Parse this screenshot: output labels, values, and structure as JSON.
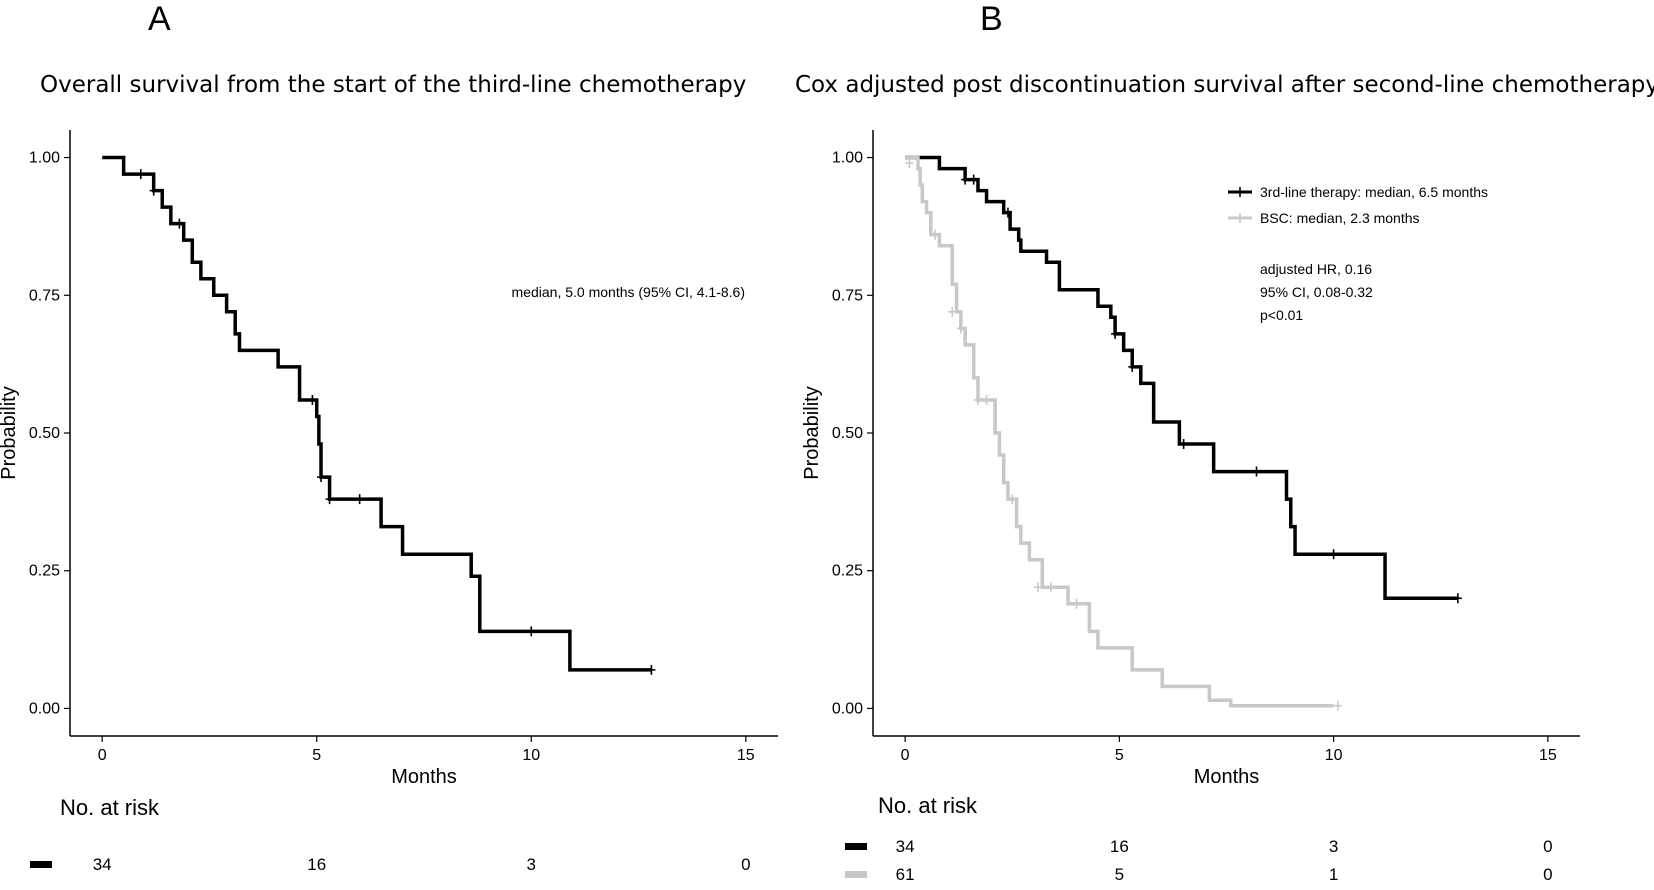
{
  "chart_data": [
    {
      "panel": "A",
      "type": "line",
      "title": "Overall survival from the start of the third-line chemotherapy",
      "xlabel": "Months",
      "ylabel": "Probability",
      "xlim": [
        -0.75,
        15.75
      ],
      "ylim": [
        -0.05,
        1.05
      ],
      "xticks": [
        0,
        5,
        10,
        15
      ],
      "yticks": [
        0.0,
        0.25,
        0.5,
        0.75,
        1.0
      ],
      "ytick_labels": [
        "0.00",
        "0.25",
        "0.50",
        "0.75",
        "1.00"
      ],
      "annotation": "median, 5.0 months (95% CI, 4.1-8.6)",
      "series": [
        {
          "name": "Overall survival",
          "color": "#000000",
          "steps": [
            [
              0,
              1.0
            ],
            [
              0.5,
              0.97
            ],
            [
              1.2,
              0.94
            ],
            [
              1.4,
              0.91
            ],
            [
              1.6,
              0.88
            ],
            [
              1.9,
              0.85
            ],
            [
              2.1,
              0.81
            ],
            [
              2.3,
              0.78
            ],
            [
              2.6,
              0.75
            ],
            [
              2.9,
              0.72
            ],
            [
              3.1,
              0.68
            ],
            [
              3.2,
              0.65
            ],
            [
              4.1,
              0.62
            ],
            [
              4.6,
              0.56
            ],
            [
              5.0,
              0.53
            ],
            [
              5.05,
              0.48
            ],
            [
              5.1,
              0.42
            ],
            [
              5.3,
              0.38
            ],
            [
              6.5,
              0.33
            ],
            [
              7.0,
              0.28
            ],
            [
              8.6,
              0.24
            ],
            [
              8.8,
              0.14
            ],
            [
              10.9,
              0.07
            ],
            [
              12.8,
              0.07
            ]
          ],
          "censor": [
            [
              0.9,
              0.97
            ],
            [
              1.2,
              0.94
            ],
            [
              1.8,
              0.88
            ],
            [
              4.9,
              0.56
            ],
            [
              5.1,
              0.42
            ],
            [
              5.3,
              0.38
            ],
            [
              6.0,
              0.38
            ],
            [
              10.0,
              0.14
            ],
            [
              12.8,
              0.07
            ]
          ]
        }
      ],
      "risk_table": {
        "title": "No. at risk",
        "rows": [
          {
            "color": "#000000",
            "values": [
              "34",
              "16",
              "3",
              "0"
            ]
          }
        ]
      }
    },
    {
      "panel": "B",
      "type": "line",
      "title": "Cox adjusted post discontinuation survival after second-line chemotherapy",
      "xlabel": "Months",
      "ylabel": "Probability",
      "xlim": [
        -0.75,
        15.75
      ],
      "ylim": [
        -0.05,
        1.05
      ],
      "xticks": [
        0,
        5,
        10,
        15
      ],
      "yticks": [
        0.0,
        0.25,
        0.5,
        0.75,
        1.0
      ],
      "ytick_labels": [
        "0.00",
        "0.25",
        "0.50",
        "0.75",
        "1.00"
      ],
      "legend": [
        "3rd-line therapy: median, 6.5 months",
        "BSC: median, 2.3 months"
      ],
      "annotation_lines": [
        "adjusted HR, 0.16",
        "95% CI, 0.08-0.32",
        "p<0.01"
      ],
      "series": [
        {
          "name": "3rd-line therapy: median, 6.5 months",
          "color": "#000000",
          "steps": [
            [
              0,
              1.0
            ],
            [
              0.8,
              0.98
            ],
            [
              1.4,
              0.96
            ],
            [
              1.7,
              0.94
            ],
            [
              1.9,
              0.92
            ],
            [
              2.3,
              0.9
            ],
            [
              2.45,
              0.87
            ],
            [
              2.65,
              0.85
            ],
            [
              2.7,
              0.83
            ],
            [
              3.3,
              0.81
            ],
            [
              3.6,
              0.76
            ],
            [
              4.5,
              0.73
            ],
            [
              4.8,
              0.71
            ],
            [
              4.9,
              0.68
            ],
            [
              5.1,
              0.65
            ],
            [
              5.3,
              0.62
            ],
            [
              5.5,
              0.59
            ],
            [
              5.8,
              0.52
            ],
            [
              6.4,
              0.48
            ],
            [
              7.2,
              0.43
            ],
            [
              8.9,
              0.38
            ],
            [
              9.0,
              0.33
            ],
            [
              9.1,
              0.28
            ],
            [
              11.2,
              0.2
            ],
            [
              12.9,
              0.2
            ]
          ],
          "censor": [
            [
              1.4,
              0.96
            ],
            [
              1.6,
              0.96
            ],
            [
              2.4,
              0.9
            ],
            [
              4.9,
              0.68
            ],
            [
              5.3,
              0.62
            ],
            [
              6.5,
              0.48
            ],
            [
              8.2,
              0.43
            ],
            [
              10.0,
              0.28
            ],
            [
              12.9,
              0.2
            ]
          ]
        },
        {
          "name": "BSC: median, 2.3 months",
          "color": "#c8c8c8",
          "steps": [
            [
              0,
              1.0
            ],
            [
              0.3,
              0.98
            ],
            [
              0.35,
              0.95
            ],
            [
              0.4,
              0.92
            ],
            [
              0.5,
              0.9
            ],
            [
              0.6,
              0.86
            ],
            [
              0.8,
              0.84
            ],
            [
              1.1,
              0.77
            ],
            [
              1.2,
              0.72
            ],
            [
              1.3,
              0.69
            ],
            [
              1.4,
              0.66
            ],
            [
              1.6,
              0.6
            ],
            [
              1.7,
              0.56
            ],
            [
              2.1,
              0.5
            ],
            [
              2.2,
              0.46
            ],
            [
              2.3,
              0.41
            ],
            [
              2.4,
              0.38
            ],
            [
              2.6,
              0.33
            ],
            [
              2.7,
              0.3
            ],
            [
              2.9,
              0.27
            ],
            [
              3.2,
              0.22
            ],
            [
              3.8,
              0.19
            ],
            [
              4.3,
              0.14
            ],
            [
              4.5,
              0.11
            ],
            [
              5.3,
              0.07
            ],
            [
              6.0,
              0.04
            ],
            [
              7.1,
              0.015
            ],
            [
              7.6,
              0.005
            ],
            [
              10.0,
              0.005
            ]
          ],
          "censor": [
            [
              0.1,
              0.99
            ],
            [
              0.7,
              0.86
            ],
            [
              1.1,
              0.72
            ],
            [
              1.3,
              0.69
            ],
            [
              1.7,
              0.56
            ],
            [
              1.9,
              0.56
            ],
            [
              2.5,
              0.38
            ],
            [
              3.1,
              0.22
            ],
            [
              3.4,
              0.22
            ],
            [
              4.0,
              0.19
            ],
            [
              10.1,
              0.005
            ]
          ]
        }
      ],
      "risk_table": {
        "title": "No. at risk",
        "rows": [
          {
            "color": "#000000",
            "values": [
              "34",
              "16",
              "3",
              "0"
            ]
          },
          {
            "color": "#c8c8c8",
            "values": [
              "61",
              "5",
              "1",
              "0"
            ]
          }
        ]
      }
    }
  ]
}
